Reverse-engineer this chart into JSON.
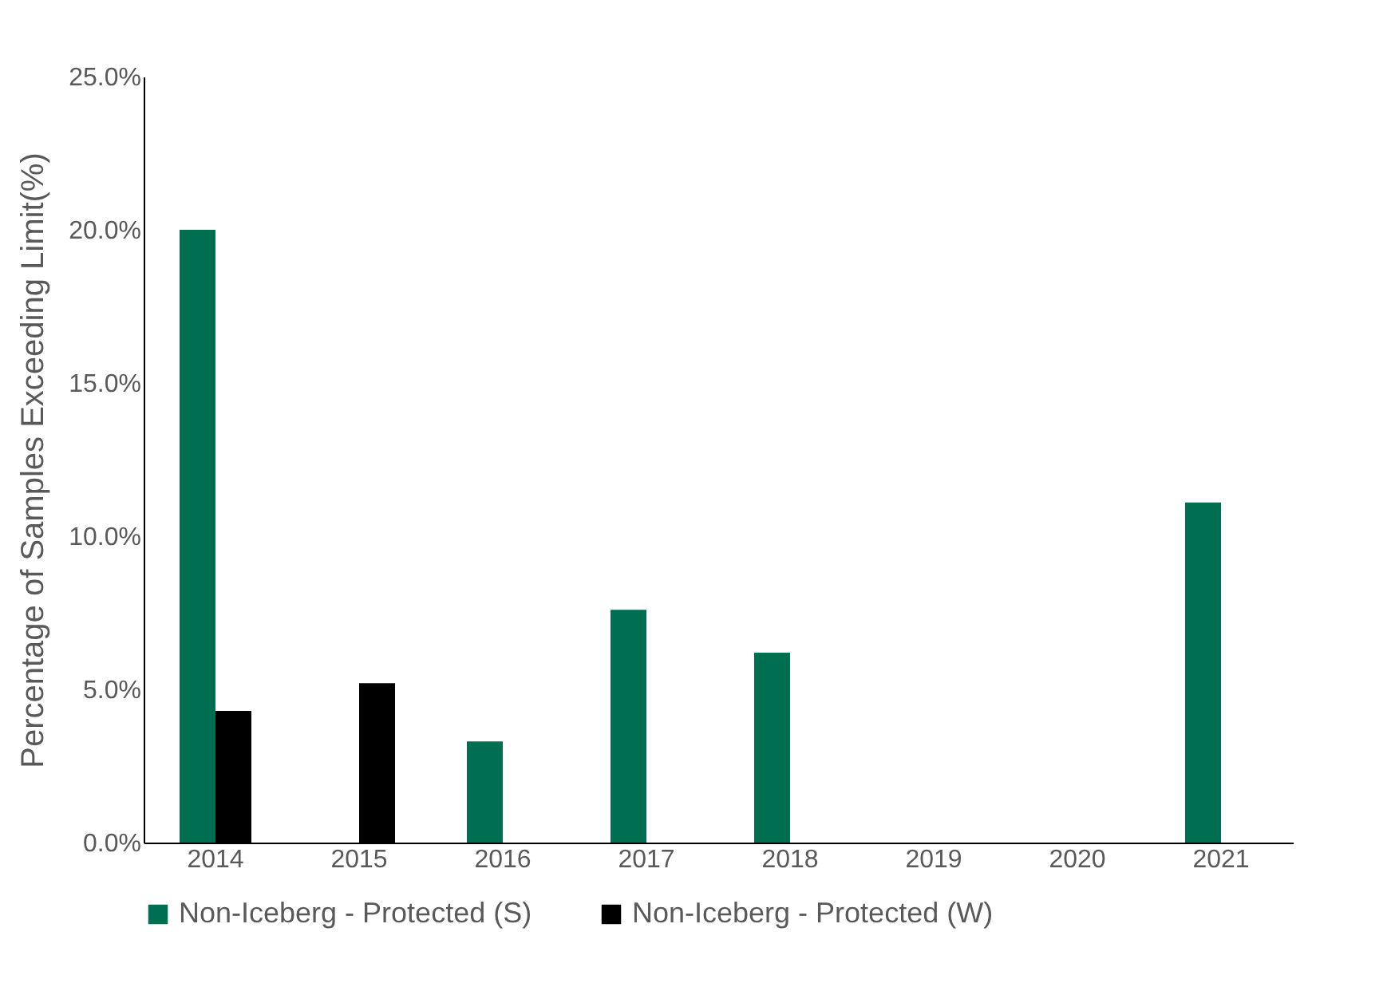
{
  "chart_data": {
    "type": "bar",
    "ylabel": "Percentage of Samples Exceeding Limit(%)",
    "categories": [
      "2014",
      "2015",
      "2016",
      "2017",
      "2018",
      "2019",
      "2020",
      "2021"
    ],
    "series": [
      {
        "name": "Non-Iceberg - Protected (S)",
        "color": "#006f51",
        "values": [
          20.0,
          null,
          3.3,
          7.6,
          6.2,
          null,
          null,
          11.1
        ]
      },
      {
        "name": "Non-Iceberg - Protected (W)",
        "color": "#000000",
        "values": [
          4.3,
          5.2,
          null,
          null,
          null,
          null,
          null,
          null
        ]
      }
    ],
    "ylim": [
      0,
      25
    ],
    "yticks": [
      {
        "value": 0,
        "label": "0.0%"
      },
      {
        "value": 5,
        "label": "5.0%"
      },
      {
        "value": 10,
        "label": "10.0%"
      },
      {
        "value": 15,
        "label": "15.0%"
      },
      {
        "value": 20,
        "label": "20.0%"
      },
      {
        "value": 25,
        "label": "25.0%"
      }
    ],
    "grid": false,
    "legend": "bottom"
  }
}
